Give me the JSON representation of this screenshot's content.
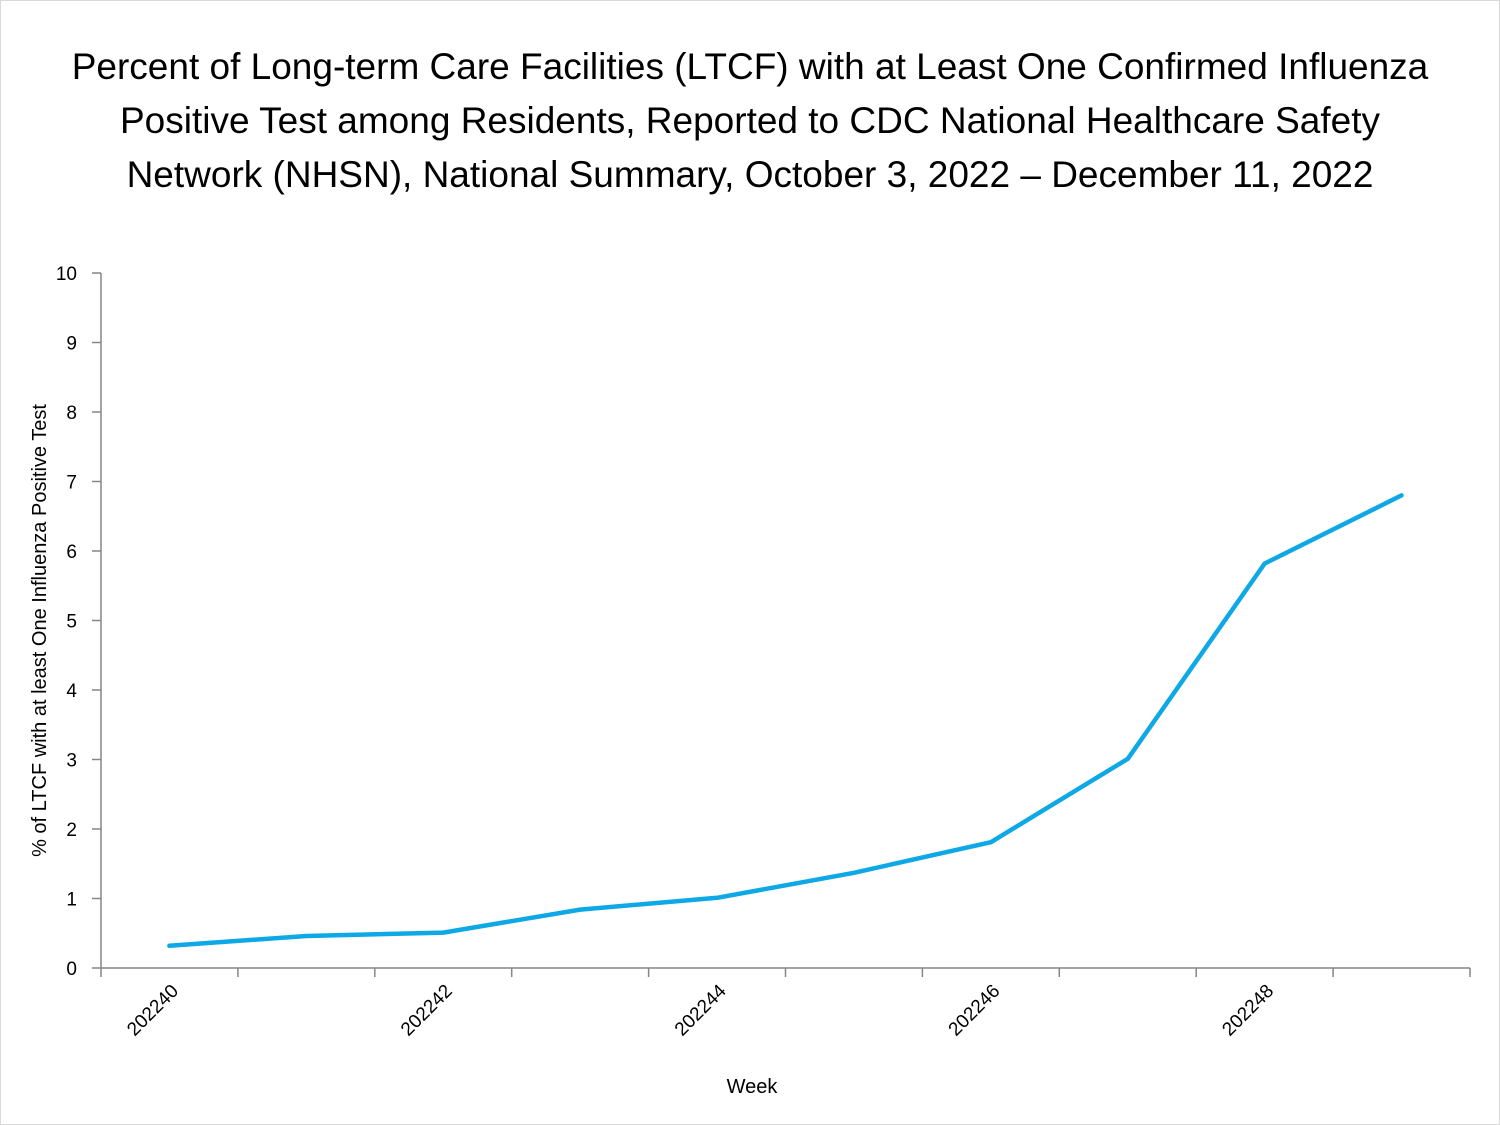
{
  "chart_data": {
    "type": "line",
    "title_lines": [
      "Percent of Long-term Care Facilities (LTCF) with at Least One Confirmed Influenza",
      "Positive Test among Residents, Reported to CDC National Healthcare Safety",
      "Network (NHSN), National Summary, October 3, 2022 – December 11, 2022"
    ],
    "xlabel": "Week",
    "ylabel": "% of LTCF with at least One Influenza Positive Test",
    "x": [
      "202240",
      "202241",
      "202242",
      "202243",
      "202244",
      "202245",
      "202246",
      "202247",
      "202248",
      "202249"
    ],
    "x_tick_labels": [
      "202240",
      "202242",
      "202244",
      "202246",
      "202248"
    ],
    "series": [
      {
        "values": [
          0.32,
          0.46,
          0.51,
          0.84,
          1.01,
          1.37,
          1.81,
          3.01,
          5.82,
          6.8
        ],
        "color": "#0fa8e6"
      }
    ],
    "ylim": [
      0,
      10
    ],
    "y_ticks": [
      0,
      1,
      2,
      3,
      4,
      5,
      6,
      7,
      8,
      9,
      10
    ],
    "grid": false,
    "legend": "none",
    "axis_color": "#868686"
  }
}
